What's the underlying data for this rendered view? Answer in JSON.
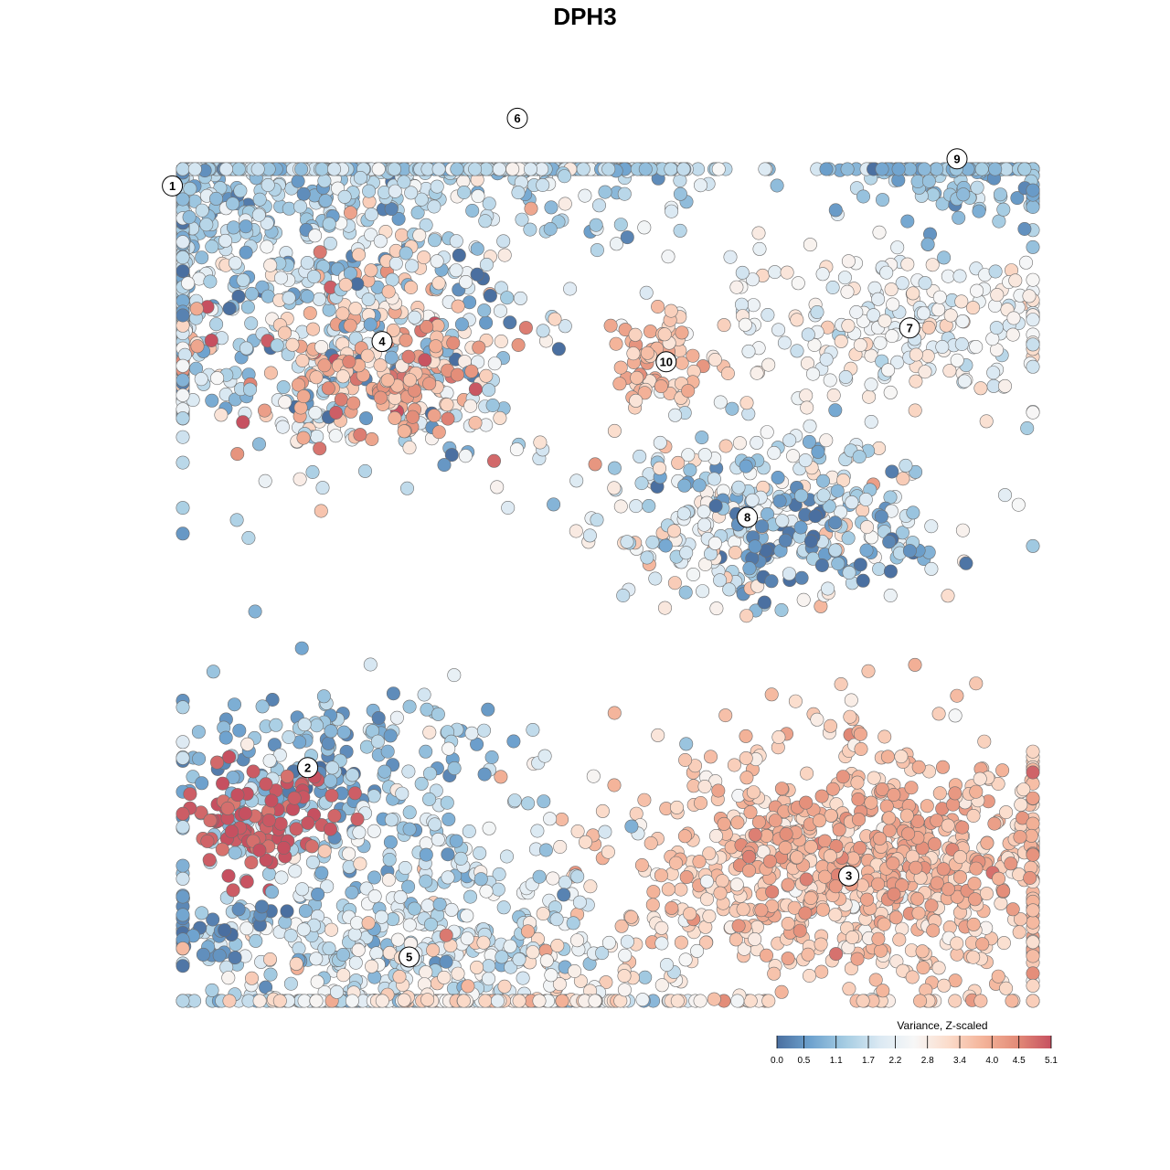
{
  "chart_data": {
    "type": "scatter",
    "title": "DPH3",
    "xlabel": "",
    "ylabel": "",
    "colorbar": {
      "title": "Variance, Z-scaled",
      "ticks": [
        "0.0",
        "0.5",
        "1.1",
        "1.7",
        "2.2",
        "2.8",
        "3.4",
        "4.0",
        "4.5",
        "5.1"
      ],
      "range": [
        0.0,
        5.1
      ],
      "colors": [
        "#4a6fa0",
        "#6fa3cf",
        "#a6cde3",
        "#dbe9f3",
        "#f7f7f7",
        "#fbdccb",
        "#f4b49a",
        "#e38c78",
        "#c65060"
      ],
      "placement": "bottom-right"
    },
    "clusters": [
      {
        "label": "1",
        "x": -6.1,
        "y": 5.9,
        "sx": 2.0,
        "sy": 1.7,
        "n": 1100,
        "value": 1.4,
        "spread": 0.55
      },
      {
        "label": "2",
        "x": -4.1,
        "y": -2.7,
        "sx": 1.3,
        "sy": 0.9,
        "n": 180,
        "value": 0.9,
        "spread": 0.5
      },
      {
        "label": "3",
        "x": 3.9,
        "y": -4.3,
        "sx": 1.9,
        "sy": 1.1,
        "n": 650,
        "value": 3.4,
        "spread": 0.4
      },
      {
        "label": "4",
        "x": -3.0,
        "y": 3.6,
        "sx": 1.1,
        "sy": 0.9,
        "n": 320,
        "value": 2.4,
        "spread": 1.2
      },
      {
        "label": "5",
        "x": -2.6,
        "y": -5.5,
        "sx": 1.6,
        "sy": 1.4,
        "n": 650,
        "value": 1.8,
        "spread": 0.6
      },
      {
        "label": "6",
        "x": -1.0,
        "y": 6.9,
        "sx": 1.6,
        "sy": 0.9,
        "n": 450,
        "value": 1.6,
        "spread": 0.5
      },
      {
        "label": "7",
        "x": 4.8,
        "y": 3.8,
        "sx": 1.4,
        "sy": 0.6,
        "n": 230,
        "value": 2.4,
        "spread": 0.5
      },
      {
        "label": "8",
        "x": 2.4,
        "y": 1.0,
        "sx": 1.4,
        "sy": 0.7,
        "n": 260,
        "value": 2.0,
        "spread": 0.9
      },
      {
        "label": "9",
        "x": 5.5,
        "y": 6.3,
        "sx": 1.0,
        "sy": 0.5,
        "n": 170,
        "value": 1.0,
        "spread": 0.4
      },
      {
        "label": "10",
        "x": 1.2,
        "y": 3.3,
        "sx": 0.4,
        "sy": 0.4,
        "n": 70,
        "value": 3.6,
        "spread": 0.4
      }
    ],
    "subclusters": [
      {
        "parent": "2",
        "x": -4.8,
        "y": -3.5,
        "sx": 0.6,
        "sy": 0.4,
        "n": 90,
        "value": 5.0,
        "spread": 0.15
      },
      {
        "parent": "2",
        "x": -5.6,
        "y": -5.1,
        "sx": 0.7,
        "sy": 0.35,
        "n": 40,
        "value": 0.3,
        "spread": 0.3
      },
      {
        "parent": "3",
        "x": 4.3,
        "y": -4.0,
        "sx": 1.2,
        "sy": 0.6,
        "n": 250,
        "value": 4.0,
        "spread": 0.3
      },
      {
        "parent": "4",
        "x": -2.8,
        "y": 3.0,
        "sx": 0.7,
        "sy": 0.4,
        "n": 90,
        "value": 4.0,
        "spread": 0.5
      },
      {
        "parent": "1",
        "x": -6.9,
        "y": 3.5,
        "sx": 1.0,
        "sy": 0.35,
        "n": 90,
        "value": 2.3,
        "spread": 1.1
      },
      {
        "parent": "8",
        "x": 3.6,
        "y": 0.8,
        "sx": 0.9,
        "sy": 0.45,
        "n": 120,
        "value": 0.9,
        "spread": 0.7
      },
      {
        "parent": "5",
        "x": -1.7,
        "y": -6.2,
        "sx": 1.6,
        "sy": 0.5,
        "n": 150,
        "value": 3.0,
        "spread": 0.5
      }
    ]
  }
}
